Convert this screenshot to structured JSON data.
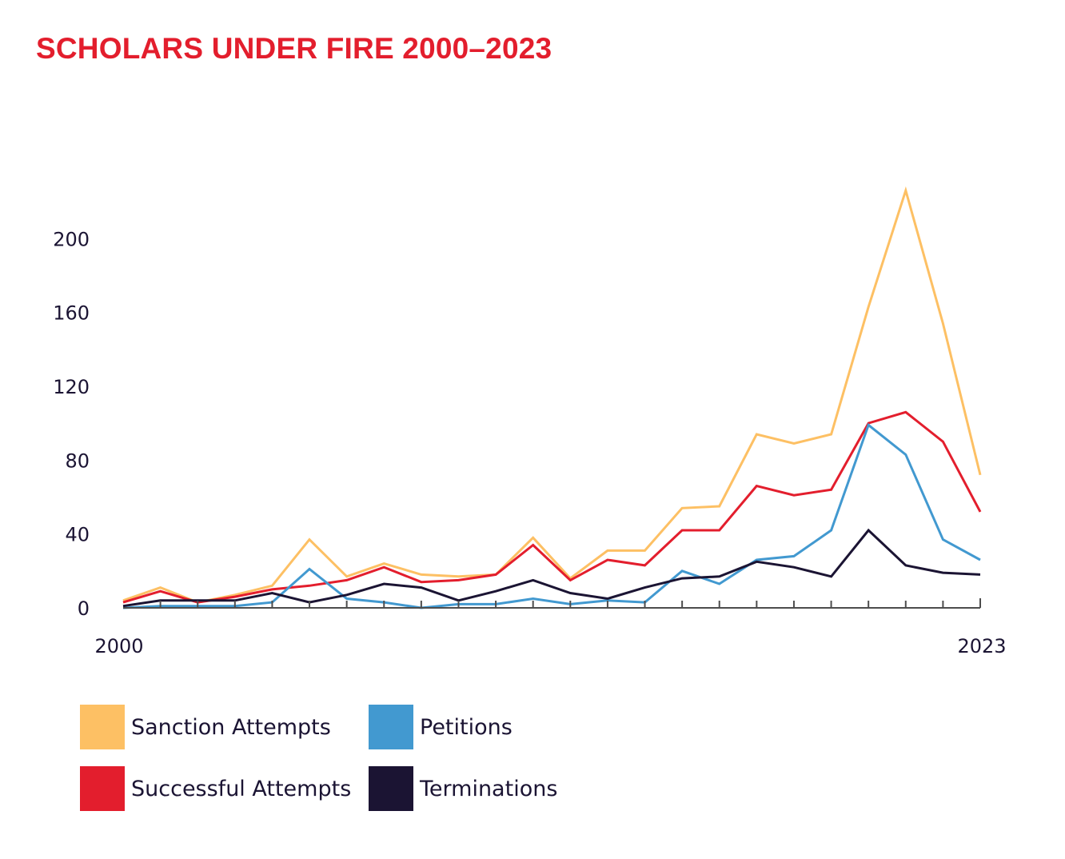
{
  "title": "SCHOLARS UNDER FIRE 2000–2023",
  "chart_data": {
    "type": "line",
    "title": "SCHOLARS UNDER FIRE 2000–2023",
    "xlabel": "",
    "ylabel": "",
    "x": [
      2000,
      2001,
      2002,
      2003,
      2004,
      2005,
      2006,
      2007,
      2008,
      2009,
      2010,
      2011,
      2012,
      2013,
      2014,
      2015,
      2016,
      2017,
      2018,
      2019,
      2020,
      2021,
      2022,
      2023
    ],
    "x_tick_labels": [
      "2000",
      "2023"
    ],
    "y_ticks": [
      0,
      40,
      80,
      120,
      160,
      200
    ],
    "ylim": [
      0,
      230
    ],
    "grid": false,
    "legend_position": "bottom-left",
    "series": [
      {
        "name": "Sanction Attempts",
        "color": "#fdc064",
        "values": [
          4,
          11,
          3,
          7,
          12,
          37,
          17,
          24,
          18,
          17,
          18,
          38,
          16,
          31,
          31,
          54,
          55,
          94,
          89,
          94,
          163,
          226,
          154,
          72
        ]
      },
      {
        "name": "Successful Attempts",
        "color": "#e31e2d",
        "values": [
          3,
          9,
          3,
          6,
          10,
          12,
          15,
          22,
          14,
          15,
          18,
          34,
          15,
          26,
          23,
          42,
          42,
          66,
          61,
          64,
          100,
          106,
          90,
          52
        ]
      },
      {
        "name": "Petitions",
        "color": "#4299d0",
        "values": [
          0,
          1,
          1,
          1,
          3,
          21,
          5,
          3,
          0,
          2,
          2,
          5,
          2,
          4,
          3,
          20,
          13,
          26,
          28,
          42,
          99,
          83,
          37,
          26
        ]
      },
      {
        "name": "Terminations",
        "color": "#1b1433",
        "values": [
          1,
          4,
          4,
          4,
          8,
          3,
          7,
          13,
          11,
          4,
          9,
          15,
          8,
          5,
          11,
          16,
          17,
          25,
          22,
          17,
          42,
          23,
          19,
          18
        ]
      }
    ]
  }
}
